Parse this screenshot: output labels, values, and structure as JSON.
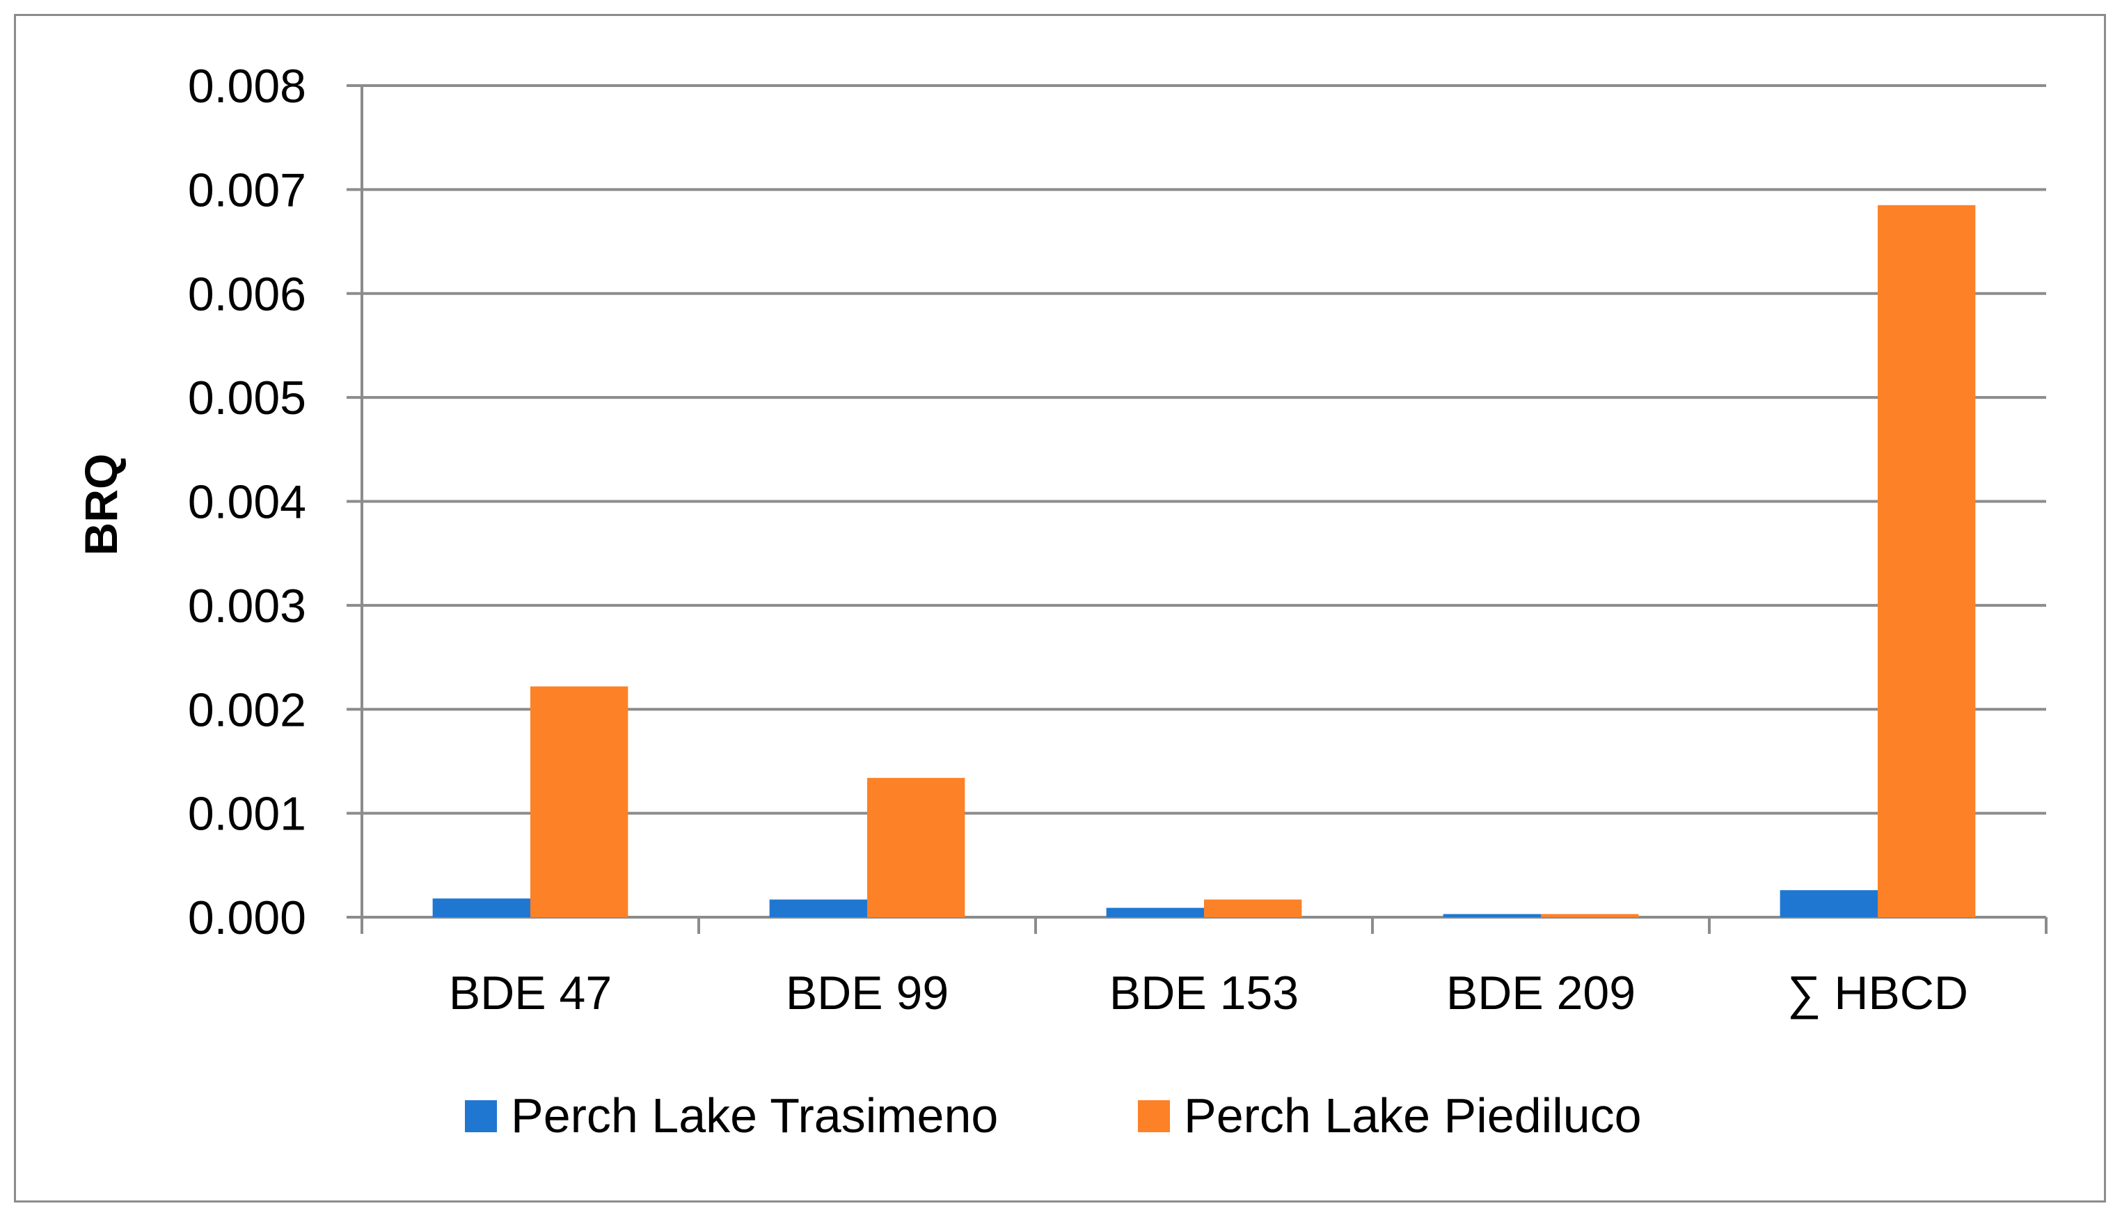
{
  "chart_data": {
    "type": "bar",
    "title": "",
    "xlabel": "",
    "ylabel": "BRQ",
    "categories": [
      "BDE 47",
      "BDE 99",
      "BDE 153",
      "BDE 209",
      "∑ HBCD"
    ],
    "series": [
      {
        "name": "Perch Lake Trasimeno",
        "color": "#1f77d2",
        "values": [
          0.00018,
          0.00017,
          9e-05,
          3e-05,
          0.00026
        ]
      },
      {
        "name": "Perch Lake Piediluco",
        "color": "#fd8127",
        "values": [
          0.00222,
          0.00134,
          0.00017,
          3e-05,
          0.00685
        ]
      }
    ],
    "ylim": [
      0,
      0.008
    ],
    "yticks": [
      "0.000",
      "0.001",
      "0.002",
      "0.003",
      "0.004",
      "0.005",
      "0.006",
      "0.007",
      "0.008"
    ],
    "grid": true,
    "legend_position": "bottom"
  }
}
